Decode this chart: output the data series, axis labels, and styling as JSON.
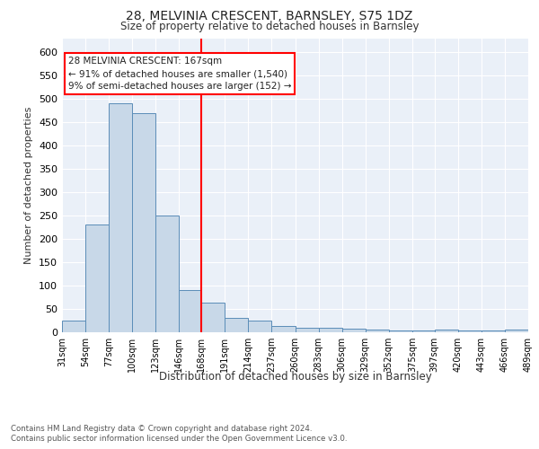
{
  "title": "28, MELVINIA CRESCENT, BARNSLEY, S75 1DZ",
  "subtitle": "Size of property relative to detached houses in Barnsley",
  "xlabel": "Distribution of detached houses by size in Barnsley",
  "ylabel": "Number of detached properties",
  "bar_color": "#c8d8e8",
  "bar_edge_color": "#5b8db8",
  "bin_edges": [
    31,
    54,
    77,
    100,
    123,
    146,
    168,
    191,
    214,
    237,
    260,
    283,
    306,
    329,
    352,
    375,
    397,
    420,
    443,
    466,
    489
  ],
  "bar_heights": [
    25,
    230,
    490,
    470,
    250,
    90,
    63,
    30,
    25,
    13,
    10,
    10,
    8,
    5,
    4,
    3,
    5,
    3,
    3,
    5
  ],
  "tick_labels": [
    "31sqm",
    "54sqm",
    "77sqm",
    "100sqm",
    "123sqm",
    "146sqm",
    "168sqm",
    "191sqm",
    "214sqm",
    "237sqm",
    "260sqm",
    "283sqm",
    "306sqm",
    "329sqm",
    "352sqm",
    "375sqm",
    "397sqm",
    "420sqm",
    "443sqm",
    "466sqm",
    "489sqm"
  ],
  "red_line_x": 168,
  "annotation_line1": "28 MELVINIA CRESCENT: 167sqm",
  "annotation_line2": "← 91% of detached houses are smaller (1,540)",
  "annotation_line3": "9% of semi-detached houses are larger (152) →",
  "ylim": [
    0,
    630
  ],
  "yticks": [
    0,
    50,
    100,
    150,
    200,
    250,
    300,
    350,
    400,
    450,
    500,
    550,
    600
  ],
  "footer_line1": "Contains HM Land Registry data © Crown copyright and database right 2024.",
  "footer_line2": "Contains public sector information licensed under the Open Government Licence v3.0.",
  "plot_bg_color": "#eaf0f8"
}
